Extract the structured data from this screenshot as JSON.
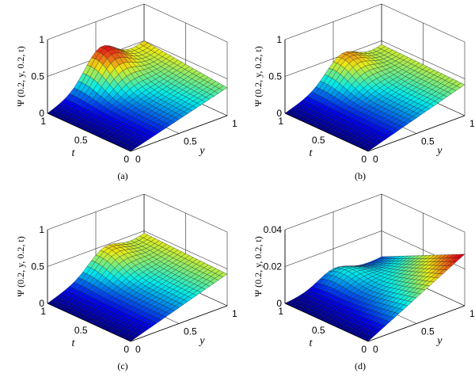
{
  "chart_data": [
    {
      "type": "surface",
      "label": "(a)",
      "zlabel": "Ψ (0.2, y, 0.2, t)",
      "xlabel": "y",
      "ylabel": "t",
      "zlim": [
        0,
        1
      ],
      "zticks": [
        "0",
        "0.5",
        "1"
      ],
      "yticks": [
        "0",
        "0.5",
        "1"
      ],
      "tticks": [
        "0",
        "0.5",
        "1"
      ],
      "corner_values": {
        "y0_t0": 0.0,
        "y0_t1": 0.0,
        "y1_t0": 0.38,
        "y1_t1": 0.5
      },
      "peak": {
        "y": 0.55,
        "t": 0.95,
        "z": 0.65
      },
      "grid": "on"
    },
    {
      "type": "surface",
      "label": "(b)",
      "zlabel": "Ψ (0.2, y, 0.2, t)",
      "xlabel": "y",
      "ylabel": "t",
      "zlim": [
        0,
        1
      ],
      "zticks": [
        "0",
        "0.5",
        "1"
      ],
      "yticks": [
        "0",
        "0.5",
        "1"
      ],
      "tticks": [
        "0",
        "0.5",
        "1"
      ],
      "corner_values": {
        "y0_t0": 0.0,
        "y0_t1": 0.0,
        "y1_t0": 0.42,
        "y1_t1": 0.45
      },
      "peak": {
        "y": 0.6,
        "t": 0.95,
        "z": 0.55
      },
      "grid": "on"
    },
    {
      "type": "surface",
      "label": "(c)",
      "zlabel": "Ψ (0.2, y, 0.2, t)",
      "xlabel": "y",
      "ylabel": "t",
      "zlim": [
        0,
        1
      ],
      "zticks": [
        "0",
        "0.5",
        "1"
      ],
      "yticks": [
        "0",
        "0.5",
        "1"
      ],
      "tticks": [
        "0",
        "0.5",
        "1"
      ],
      "corner_values": {
        "y0_t0": 0.0,
        "y0_t1": 0.0,
        "y1_t0": 0.43,
        "y1_t1": 0.47
      },
      "peak": {
        "y": 0.6,
        "t": 0.95,
        "z": 0.5
      },
      "grid": "on"
    },
    {
      "type": "surface",
      "label": "(d)",
      "zlabel": "Ψ (0.2, y, 0.2, t)",
      "xlabel": "y",
      "ylabel": "t",
      "zlim": [
        0,
        0.04
      ],
      "zticks": [
        "0",
        "0.02",
        "0.04"
      ],
      "yticks": [
        "0",
        "0.5",
        "1"
      ],
      "tticks": [
        "0",
        "0.5",
        "1"
      ],
      "corner_values": {
        "y0_t0": 0.0,
        "y0_t1": 0.0,
        "y1_t0": 0.028,
        "y1_t1": 0.006
      },
      "peak": {
        "y": 0.5,
        "t": 0.9,
        "z": 0.01
      },
      "grid": "on"
    }
  ]
}
